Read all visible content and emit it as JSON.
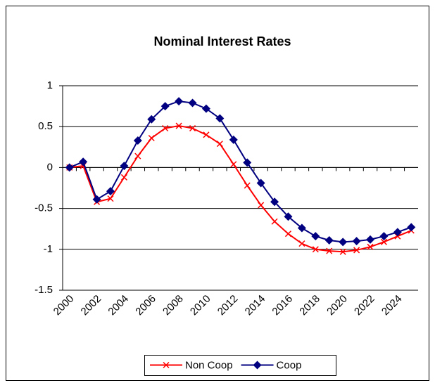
{
  "chart_data": {
    "type": "line",
    "title": "Nominal Interest Rates",
    "x": [
      2000,
      2001,
      2002,
      2003,
      2004,
      2005,
      2006,
      2007,
      2008,
      2009,
      2010,
      2011,
      2012,
      2013,
      2014,
      2015,
      2016,
      2017,
      2018,
      2019,
      2020,
      2021,
      2022,
      2023,
      2024,
      2025
    ],
    "xlim": [
      1999.5,
      2025.5
    ],
    "xticks": [
      2000,
      2002,
      2004,
      2006,
      2008,
      2010,
      2012,
      2014,
      2016,
      2018,
      2020,
      2022,
      2024
    ],
    "ylim": [
      -1.5,
      1
    ],
    "yticks": [
      -1.5,
      -1,
      -0.5,
      0,
      0.5,
      1
    ],
    "grid": true,
    "legend": "bottom",
    "series": [
      {
        "name": "Non Coop",
        "color": "#ff0000",
        "marker": "x",
        "values": [
          0,
          0.02,
          -0.42,
          -0.38,
          -0.12,
          0.14,
          0.36,
          0.48,
          0.51,
          0.48,
          0.4,
          0.29,
          0.04,
          -0.22,
          -0.46,
          -0.66,
          -0.81,
          -0.93,
          -1.0,
          -1.02,
          -1.03,
          -1.01,
          -0.97,
          -0.91,
          -0.84,
          -0.77
        ]
      },
      {
        "name": "Coop",
        "color": "#000080",
        "marker": "diamond",
        "values": [
          0,
          0.07,
          -0.39,
          -0.29,
          0.02,
          0.33,
          0.59,
          0.75,
          0.81,
          0.79,
          0.72,
          0.6,
          0.34,
          0.06,
          -0.19,
          -0.42,
          -0.6,
          -0.74,
          -0.84,
          -0.89,
          -0.91,
          -0.9,
          -0.88,
          -0.84,
          -0.79,
          -0.73
        ]
      }
    ]
  }
}
